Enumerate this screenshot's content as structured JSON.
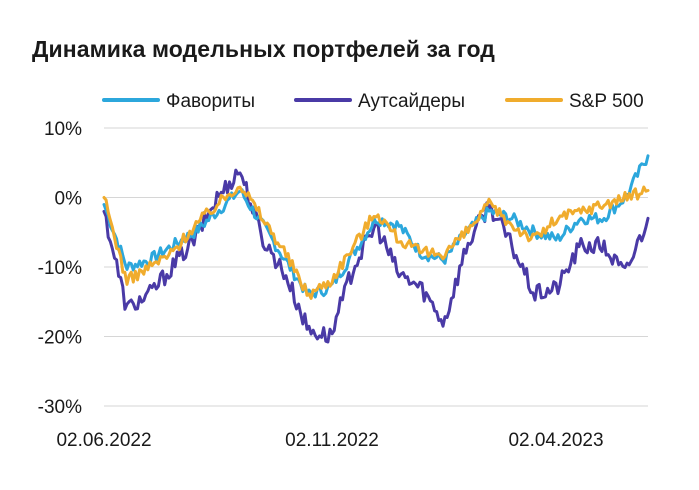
{
  "chart_data": {
    "type": "line",
    "title": "Динамика модельных портфелей за год",
    "xlabel": "",
    "ylabel": "",
    "y_ticks": [
      "10%",
      "0%",
      "-10%",
      "-20%",
      "-30%"
    ],
    "x_ticks": [
      "02.06.2022",
      "02.11.2022",
      "02.04.2023"
    ],
    "ylim": [
      -30,
      10
    ],
    "grid": "horizontal",
    "legend": "top",
    "x": [
      "2022-06",
      "2022-06",
      "2022-07",
      "2022-07",
      "2022-08",
      "2022-08",
      "2022-09",
      "2022-09",
      "2022-10",
      "2022-10",
      "2022-11",
      "2022-11",
      "2022-12",
      "2022-12",
      "2023-01",
      "2023-01",
      "2023-02",
      "2023-02",
      "2023-03",
      "2023-03",
      "2023-04",
      "2023-04",
      "2023-05",
      "2023-05",
      "2023-06"
    ],
    "series": [
      {
        "name": "Фавориты",
        "color": "#2ca7dc",
        "values": [
          -1,
          -10,
          -9,
          -7,
          -5,
          -2,
          1,
          -4,
          -9,
          -14,
          -13,
          -8,
          -3,
          -4,
          -8,
          -9,
          -5,
          -2,
          -3,
          -5,
          -6,
          -3,
          -3,
          0,
          6
        ]
      },
      {
        "name": "Аутсайдеры",
        "color": "#4a3aa6",
        "values": [
          -2,
          -16,
          -14,
          -10,
          -6,
          0,
          4,
          -6,
          -11,
          -19,
          -20,
          -10,
          -4,
          -11,
          -13,
          -18,
          -7,
          -1,
          -7,
          -14,
          -13,
          -7,
          -7,
          -11,
          -3
        ]
      },
      {
        "name": "S&P 500",
        "color": "#f0ac2d",
        "values": [
          0,
          -12,
          -10,
          -8,
          -4,
          -1,
          2,
          -3,
          -8,
          -14,
          -12,
          -7,
          -2,
          -6,
          -8,
          -8,
          -5,
          -1,
          -4,
          -6,
          -3,
          -2,
          -1,
          0,
          1
        ]
      }
    ]
  }
}
